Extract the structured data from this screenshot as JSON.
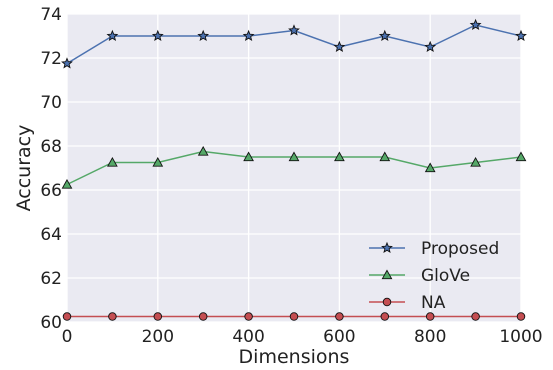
{
  "chart_data": {
    "type": "line",
    "xlabel": "Dimensions",
    "ylabel": "Accuracy",
    "xlim": [
      0,
      1000
    ],
    "ylim": [
      60,
      74
    ],
    "xticks": [
      0,
      200,
      400,
      600,
      800,
      1000
    ],
    "yticks": [
      60,
      62,
      64,
      66,
      68,
      70,
      72,
      74
    ],
    "grid": true,
    "background": "#eaeaf2",
    "legend_position": "lower-right",
    "x": [
      0,
      100,
      200,
      300,
      400,
      500,
      600,
      700,
      800,
      900,
      1000
    ],
    "series": [
      {
        "name": "Proposed",
        "color": "#4c72b0",
        "marker": "star",
        "values": [
          71.75,
          73.0,
          73.0,
          73.0,
          73.0,
          73.25,
          72.5,
          73.0,
          72.5,
          73.5,
          73.0
        ]
      },
      {
        "name": "GloVe",
        "color": "#55a868",
        "marker": "triangle",
        "values": [
          66.25,
          67.25,
          67.25,
          67.75,
          67.5,
          67.5,
          67.5,
          67.5,
          67.0,
          67.25,
          67.5
        ]
      },
      {
        "name": "NA",
        "color": "#c44e52",
        "marker": "circle",
        "values": [
          60.25,
          60.25,
          60.25,
          60.25,
          60.25,
          60.25,
          60.25,
          60.25,
          60.25,
          60.25,
          60.25
        ]
      }
    ]
  }
}
